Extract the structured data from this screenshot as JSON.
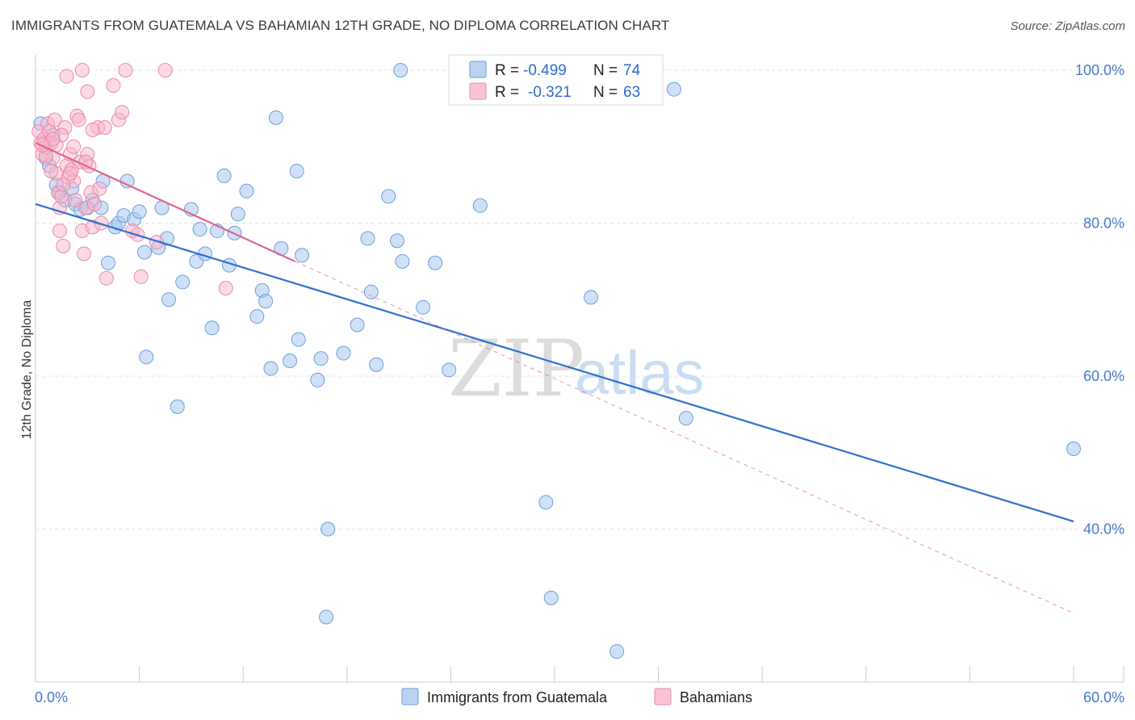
{
  "title": "IMMIGRANTS FROM GUATEMALA VS BAHAMIAN 12TH GRADE, NO DIPLOMA CORRELATION CHART",
  "source": "Source: ZipAtlas.com",
  "watermark": {
    "zip": "ZIP",
    "atlas": "atlas"
  },
  "colors": {
    "blue_fill": "#aac8f0",
    "blue_stroke": "#6f9ed8",
    "blue_line": "#2f6fd0",
    "pink_fill": "#f7b6cc",
    "pink_stroke": "#e98aaa",
    "pink_line": "#e0648c",
    "axis_text": "#4a78c8",
    "grid": "#e2e2e2"
  },
  "legend": {
    "r_label": "R =",
    "n_label": "N =",
    "series": [
      {
        "r": "-0.499",
        "n": "74"
      },
      {
        "r": "-0.321",
        "n": "63"
      }
    ]
  },
  "chart_data": {
    "type": "scatter",
    "title": "IMMIGRANTS FROM GUATEMALA VS BAHAMIAN 12TH GRADE, NO DIPLOMA CORRELATION CHART",
    "xlabel": "",
    "ylabel": "12th Grade, No Diploma",
    "xlim": [
      0,
      60
    ],
    "ylim": [
      20,
      102
    ],
    "x_tick_labels": [
      "0.0%",
      "60.0%"
    ],
    "y_ticks": [
      40,
      60,
      80,
      100
    ],
    "y_tick_labels": [
      "40.0%",
      "60.0%",
      "80.0%",
      "100.0%"
    ],
    "grid": true,
    "legend_position": "top-center",
    "series": [
      {
        "name": "Immigrants from Guatemala",
        "color": "#aac8f0",
        "r": -0.499,
        "n": 74,
        "trend": {
          "x": [
            0,
            60
          ],
          "y": [
            82.5,
            41.0
          ]
        },
        "points": [
          [
            0.3,
            93.0
          ],
          [
            0.6,
            88.5
          ],
          [
            0.8,
            87.5
          ],
          [
            1.2,
            85.0
          ],
          [
            1.4,
            84.0
          ],
          [
            1.7,
            83.0
          ],
          [
            2.1,
            84.5
          ],
          [
            2.3,
            82.5
          ],
          [
            2.6,
            81.8
          ],
          [
            3.0,
            82.0
          ],
          [
            3.3,
            83.0
          ],
          [
            3.8,
            82.0
          ],
          [
            3.9,
            85.5
          ],
          [
            4.2,
            74.8
          ],
          [
            4.6,
            79.5
          ],
          [
            4.8,
            80.0
          ],
          [
            5.1,
            81.0
          ],
          [
            5.3,
            85.5
          ],
          [
            5.7,
            80.5
          ],
          [
            6.0,
            81.5
          ],
          [
            6.3,
            76.2
          ],
          [
            6.4,
            62.5
          ],
          [
            7.1,
            76.8
          ],
          [
            7.3,
            82.0
          ],
          [
            7.6,
            78.0
          ],
          [
            7.7,
            70.0
          ],
          [
            8.2,
            56.0
          ],
          [
            8.5,
            72.3
          ],
          [
            9.0,
            81.8
          ],
          [
            9.3,
            75.0
          ],
          [
            9.5,
            79.2
          ],
          [
            9.8,
            76.0
          ],
          [
            10.2,
            66.3
          ],
          [
            10.5,
            79.0
          ],
          [
            10.9,
            86.2
          ],
          [
            11.2,
            74.5
          ],
          [
            11.5,
            78.7
          ],
          [
            11.7,
            81.2
          ],
          [
            12.2,
            84.2
          ],
          [
            12.8,
            67.8
          ],
          [
            13.1,
            71.2
          ],
          [
            13.3,
            69.8
          ],
          [
            13.6,
            61.0
          ],
          [
            13.9,
            93.8
          ],
          [
            14.2,
            76.7
          ],
          [
            14.7,
            62.0
          ],
          [
            15.1,
            86.8
          ],
          [
            15.2,
            64.8
          ],
          [
            15.4,
            75.8
          ],
          [
            16.3,
            59.5
          ],
          [
            16.5,
            62.3
          ],
          [
            16.8,
            28.5
          ],
          [
            16.9,
            40.0
          ],
          [
            17.8,
            63.0
          ],
          [
            18.6,
            66.7
          ],
          [
            19.2,
            78.0
          ],
          [
            19.4,
            71.0
          ],
          [
            19.7,
            61.5
          ],
          [
            20.4,
            83.5
          ],
          [
            20.9,
            77.7
          ],
          [
            21.1,
            100.0
          ],
          [
            21.2,
            75.0
          ],
          [
            22.4,
            69.0
          ],
          [
            23.1,
            74.8
          ],
          [
            23.9,
            60.8
          ],
          [
            25.7,
            82.3
          ],
          [
            29.5,
            43.5
          ],
          [
            29.8,
            31.0
          ],
          [
            32.1,
            70.3
          ],
          [
            33.6,
            24.0
          ],
          [
            36.9,
            97.5
          ],
          [
            37.6,
            54.5
          ],
          [
            60.0,
            50.5
          ],
          [
            1.0,
            91.5
          ]
        ]
      },
      {
        "name": "Bahamians",
        "color": "#f7b6cc",
        "r": -0.321,
        "n": 63,
        "trend": {
          "x": [
            0,
            15
          ],
          "y": [
            90.5,
            75.0
          ]
        },
        "trend_extended": {
          "x": [
            15,
            60
          ],
          "y": [
            75.0,
            29.0
          ]
        },
        "points": [
          [
            0.2,
            92.0
          ],
          [
            0.3,
            90.5
          ],
          [
            0.4,
            89.0
          ],
          [
            0.5,
            91.0
          ],
          [
            0.6,
            90.0
          ],
          [
            0.7,
            93.0
          ],
          [
            0.8,
            92.0
          ],
          [
            0.9,
            90.5
          ],
          [
            1.0,
            88.5
          ],
          [
            1.1,
            93.5
          ],
          [
            1.2,
            86.5
          ],
          [
            1.3,
            84.0
          ],
          [
            1.4,
            82.0
          ],
          [
            1.5,
            83.5
          ],
          [
            1.4,
            79.0
          ],
          [
            1.6,
            77.0
          ],
          [
            1.7,
            92.5
          ],
          [
            1.8,
            87.5
          ],
          [
            1.9,
            86.0
          ],
          [
            2.0,
            89.0
          ],
          [
            2.1,
            87.0
          ],
          [
            2.2,
            85.5
          ],
          [
            2.3,
            83.0
          ],
          [
            2.4,
            94.0
          ],
          [
            2.5,
            93.5
          ],
          [
            2.6,
            88.0
          ],
          [
            2.7,
            79.0
          ],
          [
            2.8,
            76.0
          ],
          [
            2.9,
            82.0
          ],
          [
            3.0,
            89.0
          ],
          [
            3.1,
            87.5
          ],
          [
            3.2,
            84.0
          ],
          [
            3.3,
            79.5
          ],
          [
            3.4,
            82.5
          ],
          [
            3.6,
            92.5
          ],
          [
            3.7,
            84.5
          ],
          [
            3.8,
            80.0
          ],
          [
            4.0,
            92.5
          ],
          [
            4.1,
            72.8
          ],
          [
            4.5,
            98.0
          ],
          [
            4.8,
            93.5
          ],
          [
            5.0,
            94.5
          ],
          [
            5.2,
            100.0
          ],
          [
            5.6,
            79.0
          ],
          [
            5.9,
            78.5
          ],
          [
            6.1,
            73.0
          ],
          [
            7.0,
            77.5
          ],
          [
            7.5,
            100.0
          ],
          [
            11.0,
            71.5
          ],
          [
            2.7,
            100.0
          ],
          [
            1.8,
            99.2
          ],
          [
            3.0,
            97.2
          ],
          [
            2.9,
            88.0
          ],
          [
            2.0,
            86.5
          ],
          [
            1.5,
            91.5
          ],
          [
            0.9,
            86.8
          ],
          [
            1.2,
            90.2
          ],
          [
            2.2,
            90.0
          ],
          [
            0.6,
            88.8
          ],
          [
            3.3,
            92.2
          ],
          [
            1.0,
            91.0
          ],
          [
            0.4,
            90.2
          ],
          [
            1.6,
            85.0
          ]
        ]
      }
    ]
  }
}
